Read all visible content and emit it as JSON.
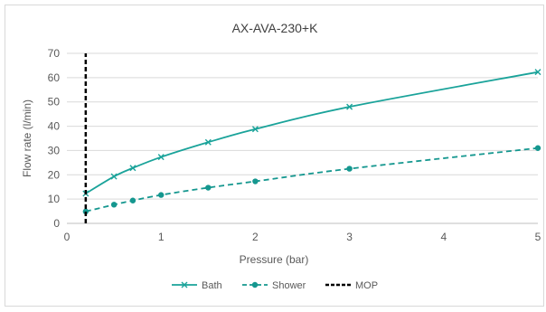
{
  "chart_data": {
    "type": "line",
    "title": "AX-AVA-230+K",
    "xlabel": "Pressure (bar)",
    "ylabel": "Flow rate (l/min)",
    "xlim": [
      0,
      5
    ],
    "ylim": [
      0,
      70
    ],
    "xticks": [
      "0",
      "1",
      "2",
      "3",
      "4",
      "5"
    ],
    "yticks": [
      "0",
      "10",
      "20",
      "30",
      "40",
      "50",
      "60",
      "70"
    ],
    "grid": "horizontal",
    "legend_position": "bottom",
    "colors": {
      "bath": "#1aa39a",
      "shower": "#15978f",
      "mop": "#000000"
    },
    "series": [
      {
        "name": "Bath",
        "style": "solid",
        "marker": "x",
        "x": [
          0.2,
          0.5,
          0.7,
          1,
          1.5,
          2,
          3,
          5
        ],
        "y": [
          12.3,
          19.3,
          22.8,
          27.3,
          33.4,
          38.8,
          48.0,
          62.3
        ]
      },
      {
        "name": "Shower",
        "style": "dashed",
        "marker": "circle",
        "x": [
          0.2,
          0.5,
          0.7,
          1,
          1.5,
          2,
          3,
          5
        ],
        "y": [
          4.9,
          7.7,
          9.4,
          11.7,
          14.7,
          17.3,
          22.5,
          31.0
        ]
      },
      {
        "name": "MOP",
        "style": "dashed-vertical",
        "x": [
          0.2,
          0.2
        ],
        "y": [
          0,
          70
        ]
      }
    ]
  }
}
